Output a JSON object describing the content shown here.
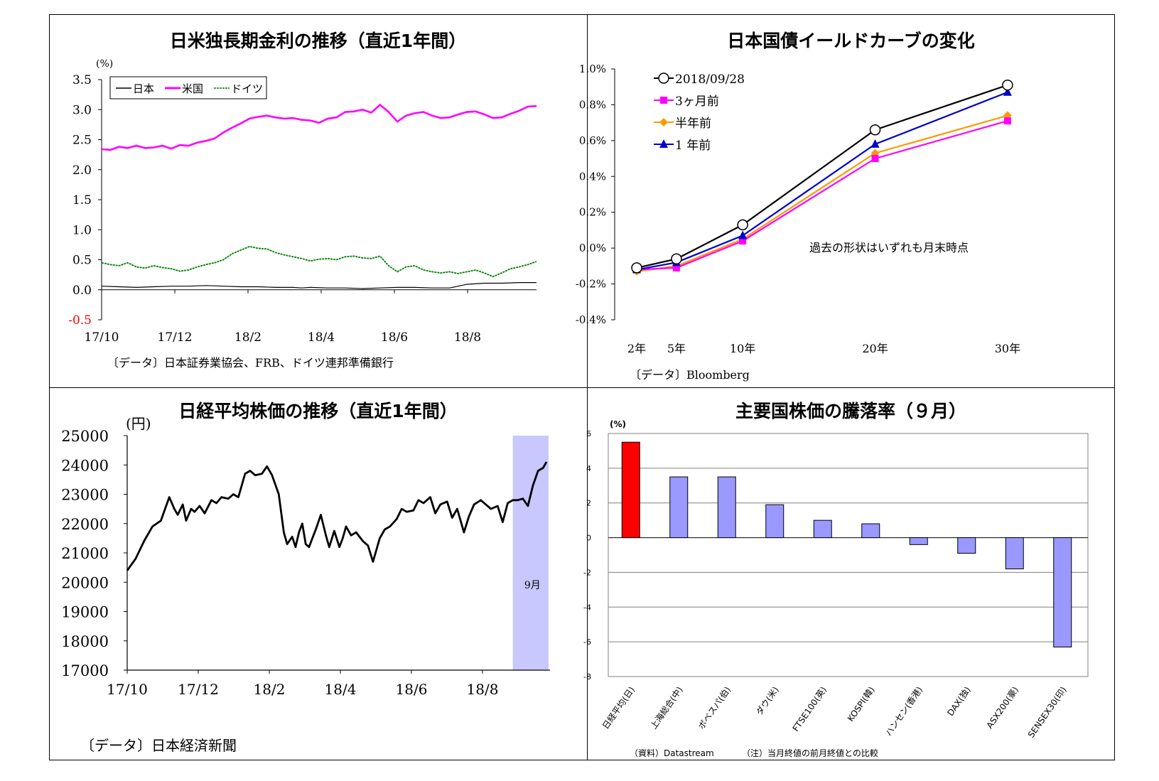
{
  "panels": {
    "rates": {
      "title": "日米独長期金利の推移（直近1年間）",
      "unit": "(%)",
      "source": "〔データ〕日本証券業協会、FRB、ドイツ連邦準備銀行"
    },
    "yield": {
      "title": "日本国債イールドカーブの変化",
      "source": "〔データ〕Bloomberg",
      "annotation": "過去の形状はいずれも月末時点"
    },
    "nikkei": {
      "title": "日経平均株価の推移（直近1年間）",
      "unit": "(円)",
      "source": "〔データ〕日本経済新聞",
      "highlight_label": "9月"
    },
    "stocks": {
      "title": "主要国株価の騰落率（９月）",
      "unit": "(%)",
      "source": "（資料）Datastream",
      "note": "（注）当月終値の前月終値との比較"
    }
  },
  "chart_data": [
    {
      "type": "line",
      "title": "日米独長期金利の推移（直近1年間）",
      "ylabel": "(%)",
      "ylim": [
        -0.5,
        3.5
      ],
      "yticks": [
        "3.5",
        "3.0",
        "2.5",
        "2.0",
        "1.5",
        "1.0",
        "0.5",
        "0.0",
        "-0.5"
      ],
      "xticks": [
        "17/10",
        "17/12",
        "18/2",
        "18/4",
        "18/6",
        "18/8"
      ],
      "legend_position": "top-left",
      "series": [
        {
          "name": "日本",
          "color": "#000000",
          "x": [
            0,
            10,
            20,
            30,
            40,
            50,
            60,
            70,
            80,
            90,
            100,
            110,
            115,
            120,
            130,
            140,
            150,
            160,
            170,
            180,
            190,
            200,
            210,
            220,
            230,
            240,
            250
          ],
          "values": [
            0.06,
            0.05,
            0.04,
            0.05,
            0.06,
            0.06,
            0.07,
            0.06,
            0.05,
            0.05,
            0.04,
            0.04,
            0.03,
            0.04,
            0.03,
            0.03,
            0.02,
            0.03,
            0.04,
            0.04,
            0.03,
            0.03,
            0.09,
            0.11,
            0.11,
            0.12,
            0.12
          ]
        },
        {
          "name": "米国",
          "color": "#ff00ff",
          "x": [
            0,
            5,
            10,
            15,
            20,
            25,
            30,
            35,
            40,
            45,
            50,
            55,
            60,
            65,
            70,
            75,
            80,
            85,
            90,
            95,
            100,
            105,
            110,
            115,
            120,
            125,
            130,
            135,
            140,
            145,
            150,
            155,
            160,
            165,
            170,
            175,
            180,
            185,
            190,
            195,
            200,
            205,
            210,
            215,
            220,
            225,
            230,
            235,
            240,
            245,
            250
          ],
          "values": [
            2.34,
            2.33,
            2.38,
            2.36,
            2.4,
            2.36,
            2.37,
            2.4,
            2.35,
            2.41,
            2.4,
            2.45,
            2.48,
            2.52,
            2.62,
            2.7,
            2.77,
            2.85,
            2.88,
            2.9,
            2.87,
            2.85,
            2.86,
            2.83,
            2.82,
            2.78,
            2.85,
            2.87,
            2.96,
            2.97,
            3.0,
            2.95,
            3.08,
            2.96,
            2.8,
            2.9,
            2.94,
            2.96,
            2.9,
            2.86,
            2.87,
            2.92,
            2.96,
            2.97,
            2.92,
            2.86,
            2.87,
            2.93,
            2.98,
            3.05,
            3.06
          ]
        },
        {
          "name": "ドイツ",
          "color": "#008000",
          "x": [
            0,
            5,
            10,
            15,
            20,
            25,
            30,
            35,
            40,
            45,
            50,
            55,
            60,
            65,
            70,
            75,
            80,
            85,
            90,
            95,
            100,
            105,
            110,
            115,
            120,
            125,
            130,
            135,
            140,
            145,
            150,
            155,
            160,
            165,
            170,
            175,
            180,
            185,
            190,
            195,
            200,
            205,
            210,
            215,
            220,
            225,
            230,
            235,
            240,
            245,
            250
          ],
          "values": [
            0.45,
            0.42,
            0.4,
            0.45,
            0.38,
            0.36,
            0.4,
            0.37,
            0.35,
            0.31,
            0.33,
            0.38,
            0.42,
            0.45,
            0.5,
            0.6,
            0.66,
            0.72,
            0.69,
            0.68,
            0.62,
            0.58,
            0.55,
            0.52,
            0.48,
            0.51,
            0.52,
            0.5,
            0.55,
            0.56,
            0.53,
            0.52,
            0.56,
            0.4,
            0.3,
            0.38,
            0.4,
            0.33,
            0.3,
            0.28,
            0.3,
            0.27,
            0.3,
            0.33,
            0.28,
            0.22,
            0.28,
            0.35,
            0.38,
            0.42,
            0.47
          ]
        }
      ]
    },
    {
      "type": "line",
      "title": "日本国債イールドカーブの変化",
      "ylim": [
        -0.4,
        1.0
      ],
      "yticks": [
        "1.0%",
        "0.8%",
        "0.6%",
        "0.4%",
        "0.2%",
        "0.0%",
        "-0.2%",
        "-0.4%"
      ],
      "categories": [
        "2年",
        "5年",
        "10年",
        "20年",
        "30年"
      ],
      "maturities": [
        2,
        5,
        10,
        20,
        30
      ],
      "legend_position": "top-left",
      "series": [
        {
          "name": "2018/09/28",
          "color": "#000000",
          "marker": "circle",
          "values": [
            -0.11,
            -0.06,
            0.13,
            0.66,
            0.91
          ]
        },
        {
          "name": "3ヶ月前",
          "color": "#ff00ff",
          "marker": "square",
          "values": [
            -0.12,
            -0.11,
            0.04,
            0.5,
            0.71
          ]
        },
        {
          "name": "半年前",
          "color": "#ff9900",
          "marker": "diamond",
          "values": [
            -0.13,
            -0.1,
            0.05,
            0.53,
            0.74
          ]
        },
        {
          "name": "1 年前",
          "color": "#0000cc",
          "marker": "triangle",
          "values": [
            -0.12,
            -0.08,
            0.07,
            0.58,
            0.87
          ]
        }
      ]
    },
    {
      "type": "line",
      "title": "日経平均株価の推移（直近1年間）",
      "ylabel": "(円)",
      "ylim": [
        17000,
        25000
      ],
      "yticks": [
        "25000",
        "24000",
        "23000",
        "22000",
        "21000",
        "20000",
        "19000",
        "18000",
        "17000"
      ],
      "xticks": [
        "17/10",
        "17/12",
        "18/2",
        "18/4",
        "18/6",
        "18/8"
      ],
      "highlight": {
        "label": "9月",
        "from": 229,
        "to": 249
      },
      "series": [
        {
          "name": "",
          "color": "#000000",
          "x": [
            0,
            5,
            10,
            15,
            20,
            25,
            28,
            30,
            33,
            35,
            38,
            40,
            43,
            46,
            50,
            53,
            56,
            60,
            63,
            66,
            70,
            73,
            76,
            80,
            83,
            86,
            90,
            93,
            95,
            98,
            100,
            102,
            104,
            106,
            108,
            110,
            112,
            115,
            118,
            120,
            123,
            126,
            128,
            130,
            133,
            136,
            140,
            143,
            146,
            150,
            153,
            156,
            160,
            163,
            166,
            170,
            173,
            176,
            180,
            183,
            186,
            190,
            193,
            196,
            200,
            203,
            206,
            210,
            213,
            216,
            220,
            223,
            226,
            229,
            232,
            235,
            238,
            241,
            244,
            247,
            249
          ],
          "values": [
            20400,
            20800,
            21400,
            21900,
            22100,
            22900,
            22500,
            22300,
            22650,
            22100,
            22500,
            22400,
            22600,
            22350,
            22800,
            22700,
            22900,
            22850,
            23000,
            22900,
            23700,
            23800,
            23650,
            23700,
            23950,
            23650,
            23000,
            21700,
            21300,
            21550,
            21200,
            21700,
            22000,
            21300,
            21200,
            21500,
            21800,
            22300,
            21600,
            21200,
            21750,
            21200,
            21500,
            21900,
            21600,
            21700,
            21400,
            21250,
            20700,
            21500,
            21800,
            21900,
            22150,
            22500,
            22400,
            22450,
            22800,
            22700,
            22900,
            22350,
            22650,
            22750,
            22200,
            22500,
            21700,
            22250,
            22650,
            22800,
            22650,
            22500,
            22600,
            22050,
            22700,
            22800,
            22800,
            22850,
            22600,
            23300,
            23800,
            23900,
            24100
          ]
        }
      ]
    },
    {
      "type": "bar",
      "title": "主要国株価の騰落率（９月）",
      "ylabel": "(%)",
      "ylim": [
        -8,
        6
      ],
      "yticks": [
        "6",
        "4",
        "2",
        "0",
        "-2",
        "-4",
        "-6",
        "-8"
      ],
      "categories": [
        "日経平均(日)",
        "上海総合(中)",
        "ボベスパ(伯)",
        "ダウ(米)",
        "FTSE100(英)",
        "KOSPI(韓)",
        "ハンセン(香港)",
        "DAX(独)",
        "ASX200(豪)",
        "SENSEX30(印)"
      ],
      "values": [
        5.5,
        3.5,
        3.5,
        1.9,
        1.0,
        0.8,
        -0.4,
        -0.9,
        -1.8,
        -6.3
      ],
      "colors": [
        "#ff0000",
        "#9999ff",
        "#9999ff",
        "#9999ff",
        "#9999ff",
        "#9999ff",
        "#9999ff",
        "#9999ff",
        "#9999ff",
        "#9999ff"
      ]
    }
  ]
}
